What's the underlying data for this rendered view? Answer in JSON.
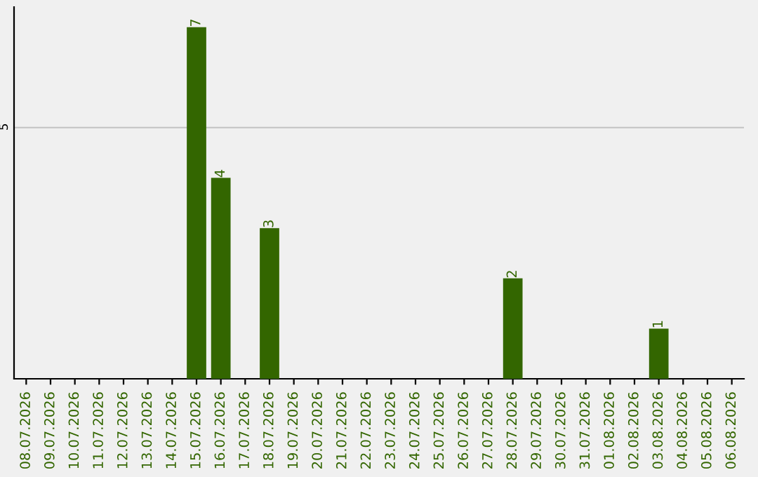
{
  "chart_data": {
    "type": "bar",
    "categories": [
      "08.07.2026",
      "09.07.2026",
      "10.07.2026",
      "11.07.2026",
      "12.07.2026",
      "13.07.2026",
      "14.07.2026",
      "15.07.2026",
      "16.07.2026",
      "17.07.2026",
      "18.07.2026",
      "19.07.2026",
      "20.07.2026",
      "21.07.2026",
      "22.07.2026",
      "23.07.2026",
      "24.07.2026",
      "25.07.2026",
      "26.07.2026",
      "27.07.2026",
      "28.07.2026",
      "29.07.2026",
      "30.07.2026",
      "31.07.2026",
      "01.08.2026",
      "02.08.2026",
      "03.08.2026",
      "04.08.2026",
      "05.08.2026",
      "06.08.2026"
    ],
    "values": [
      0,
      0,
      0,
      0,
      0,
      0,
      0,
      7,
      4,
      0,
      3,
      0,
      0,
      0,
      0,
      0,
      0,
      0,
      0,
      0,
      2,
      0,
      0,
      0,
      0,
      0,
      1,
      0,
      0,
      0
    ],
    "color": "#336600",
    "value_labels": [
      null,
      null,
      null,
      null,
      null,
      null,
      null,
      "7",
      "4",
      null,
      "3",
      null,
      null,
      null,
      null,
      null,
      null,
      null,
      null,
      null,
      "2",
      null,
      null,
      null,
      null,
      null,
      "1",
      null,
      null,
      null
    ],
    "ylim": [
      0,
      7.4
    ],
    "yticks": [
      5
    ],
    "grid": "y"
  }
}
